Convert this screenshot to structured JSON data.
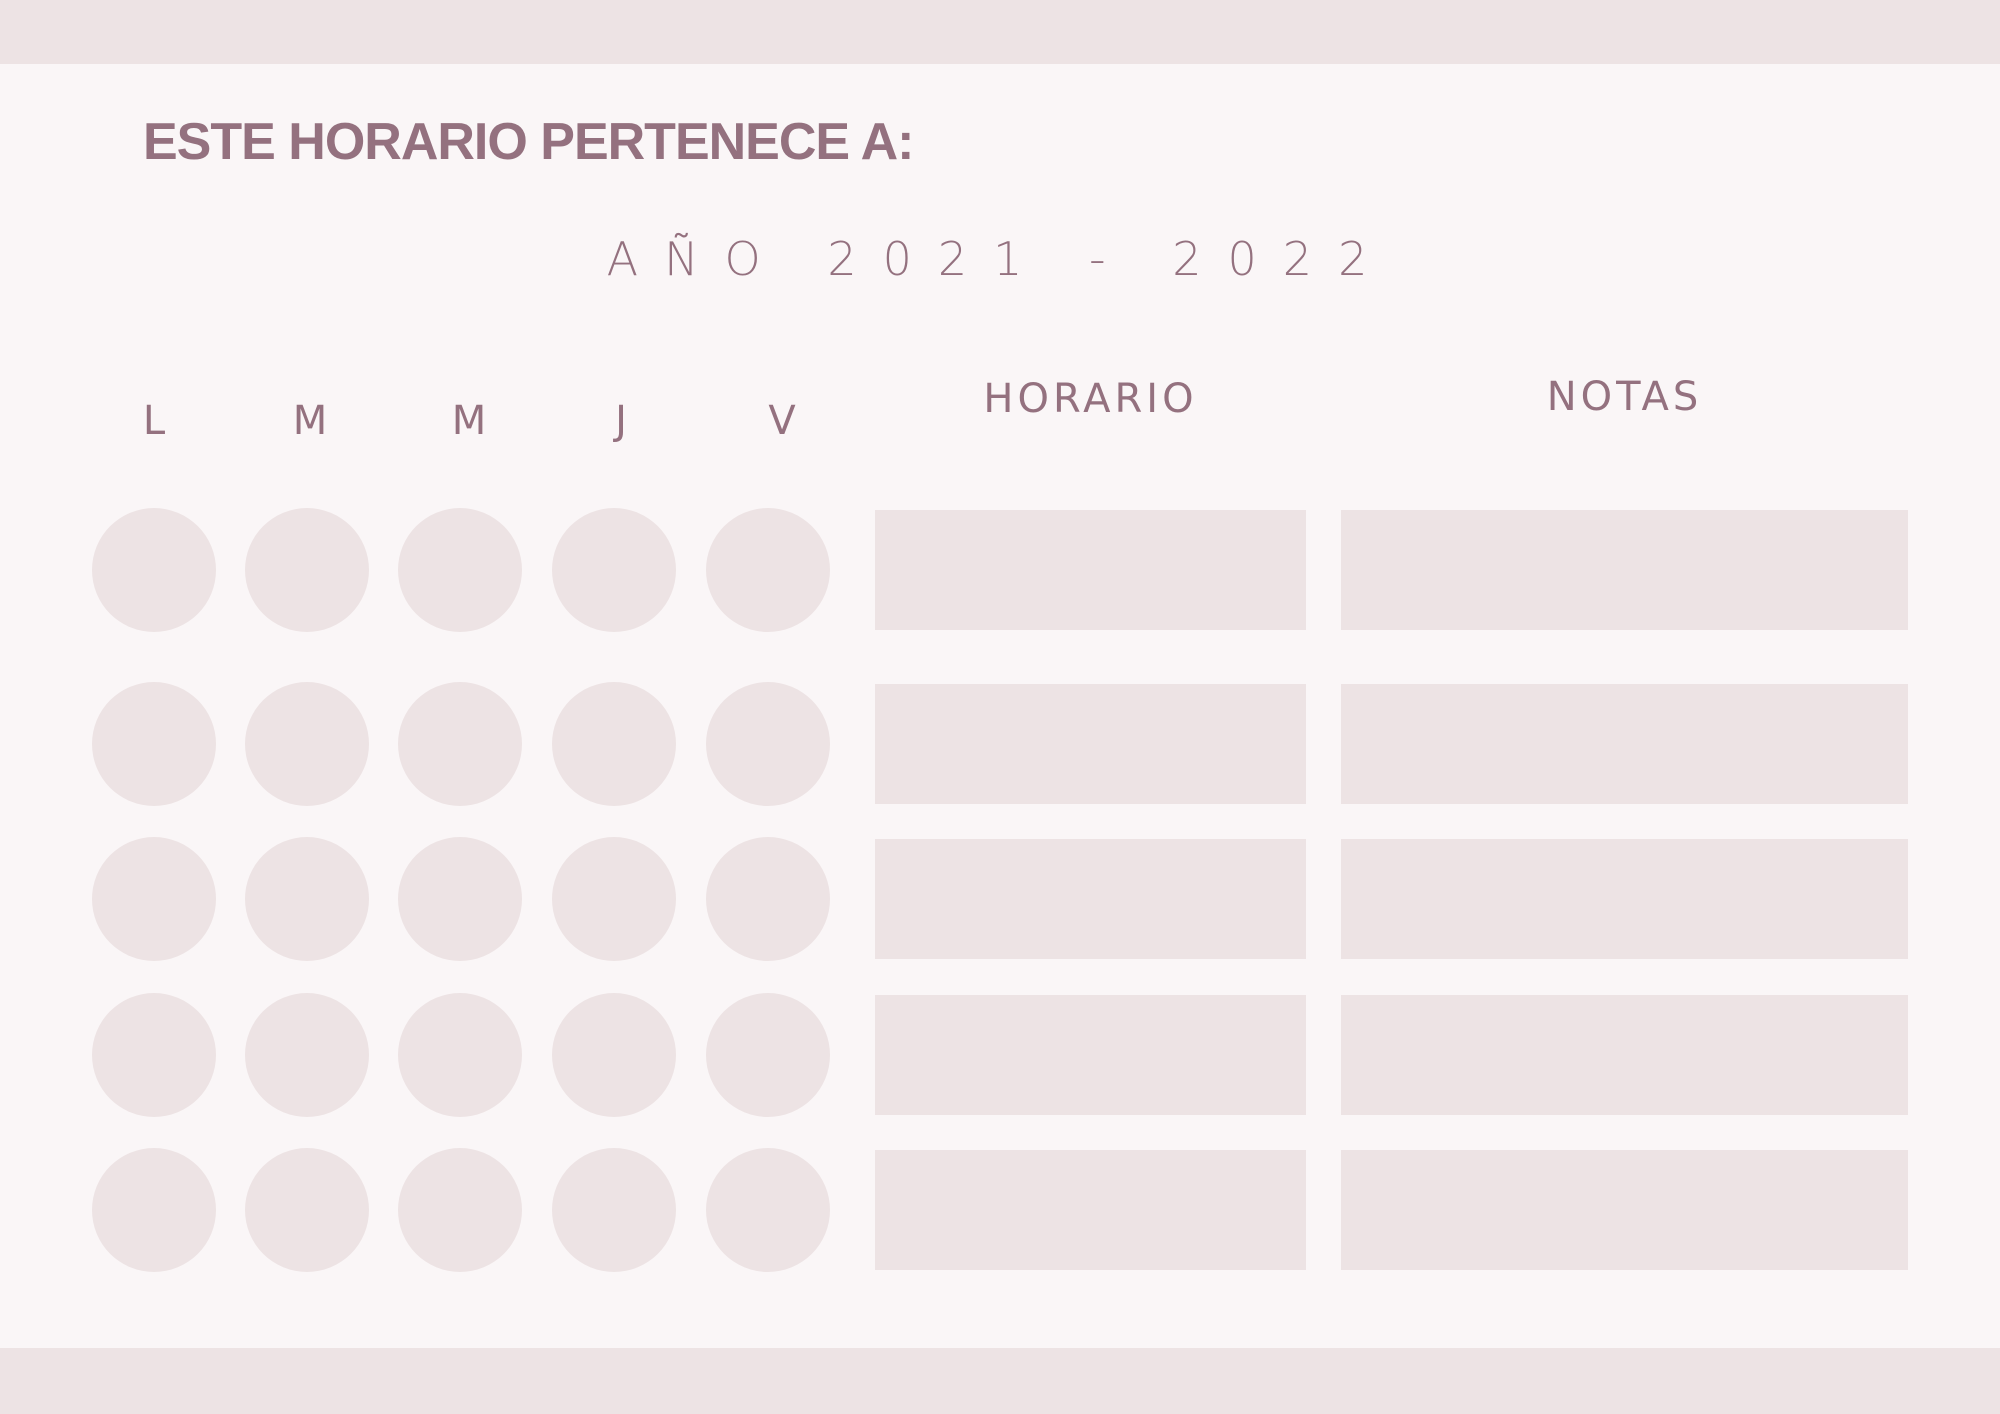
{
  "header": {
    "title": "ESTE HORARIO PERTENECE A:",
    "year": "AÑO 2021 - 2022"
  },
  "days": [
    "L",
    "M",
    "M",
    "J",
    "V"
  ],
  "columns": {
    "schedule": "HORARIO",
    "notes": "NOTAS"
  },
  "rows": 5,
  "colors": {
    "background": "#faf6f7",
    "fill": "#ede3e4",
    "text": "#94717f"
  }
}
